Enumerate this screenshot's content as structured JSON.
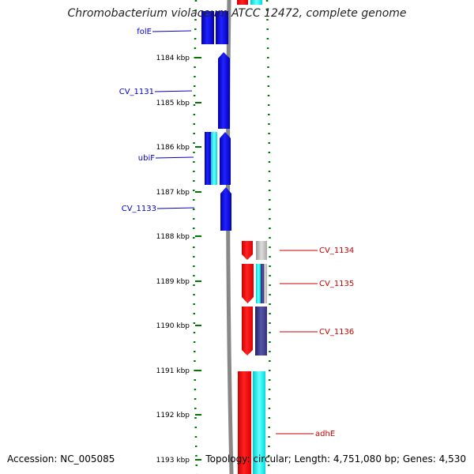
{
  "title": "Chromobacterium violaceum ATCC 12472, complete genome",
  "footer": {
    "accession": "Accession: NC_005085",
    "summary": "Topology: circular; Length: 4,751,080 bp; Genes: 4,530"
  },
  "ruler": {
    "ticks": [
      "1184 kbp",
      "1185 kbp",
      "1186 kbp",
      "1187 kbp",
      "1188 kbp",
      "1189 kbp",
      "1190 kbp",
      "1191 kbp",
      "1192 kbp",
      "1193 kbp"
    ]
  },
  "genes": {
    "left": [
      {
        "label": "folE",
        "color": "#0000cc"
      },
      {
        "label": "CV_1131",
        "color": "#0000cc"
      },
      {
        "label": "ubiF",
        "color": "#0000cc"
      },
      {
        "label": "CV_1133",
        "color": "#0000cc"
      }
    ],
    "right": [
      {
        "label": "CV_1134",
        "color": "#cc0000"
      },
      {
        "label": "CV_1135",
        "color": "#cc0000"
      },
      {
        "label": "CV_1136",
        "color": "#cc0000"
      },
      {
        "label": "adhE",
        "color": "#cc0000"
      }
    ]
  },
  "colors": {
    "forward_strand": "#0000ee",
    "reverse_strand": "#ff0000",
    "cog_cyan": "#00ffff",
    "cog_gray": "#aaaaaa",
    "cog_navy": "#333399",
    "backbone": "#888888",
    "dotted_ring": "#007700"
  }
}
